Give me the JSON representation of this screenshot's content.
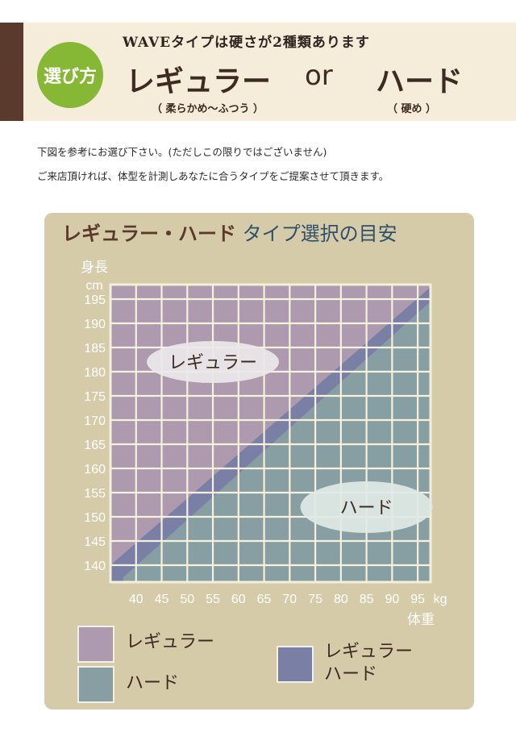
{
  "header": {
    "badge": "選び方",
    "subtitle": "WAVEタイプは硬さが2種類あります",
    "regular": "レギュラー",
    "or": "or",
    "hard": "ハード",
    "regular_note": "（ 柔らかめ～ふつう ）",
    "hard_note": "（ 硬め ）"
  },
  "description": {
    "line1": "下図を参考にお選び下さい。(ただしこの限りではございません)",
    "line2": "ご来店頂ければ、体型を計測しあなたに合うタイプをご提案させて頂きます。"
  },
  "colors": {
    "regular": "#ae9aae",
    "hard": "#879fa2",
    "both": "#7a7fa6",
    "panel": "#d6cba8",
    "grid": "#f6f1dc"
  },
  "chart_data": {
    "type": "area",
    "title_part1": "レギュラー・ハード",
    "title_part2": "タイプ選択の目安",
    "ylabel_line1": "身長",
    "ylabel_line2": "cm",
    "xlabel": "体重",
    "x_unit": "kg",
    "x_ticks": [
      40,
      45,
      50,
      55,
      60,
      65,
      70,
      75,
      80,
      85,
      90,
      95
    ],
    "y_ticks": [
      140,
      145,
      150,
      155,
      160,
      165,
      170,
      175,
      180,
      185,
      190,
      195
    ],
    "xlim": [
      35,
      97.5
    ],
    "ylim": [
      136.5,
      198
    ],
    "boundary_upper": {
      "x": [
        35,
        97.5
      ],
      "y": [
        140,
        197.5
      ]
    },
    "boundary_lower": {
      "x": [
        37.5,
        97.5
      ],
      "y": [
        137.5,
        194.5
      ]
    },
    "regions": [
      {
        "name": "レギュラー",
        "label_x": 55,
        "label_y": 182
      },
      {
        "name": "ハード",
        "label_x": 85,
        "label_y": 152
      }
    ],
    "legend": [
      {
        "label": "レギュラー",
        "color": "#ae9aae"
      },
      {
        "label": "ハード",
        "color": "#879fa2"
      },
      {
        "label1": "レギュラー",
        "label2": "ハード",
        "color": "#7a7fa6"
      }
    ],
    "grid": true
  }
}
